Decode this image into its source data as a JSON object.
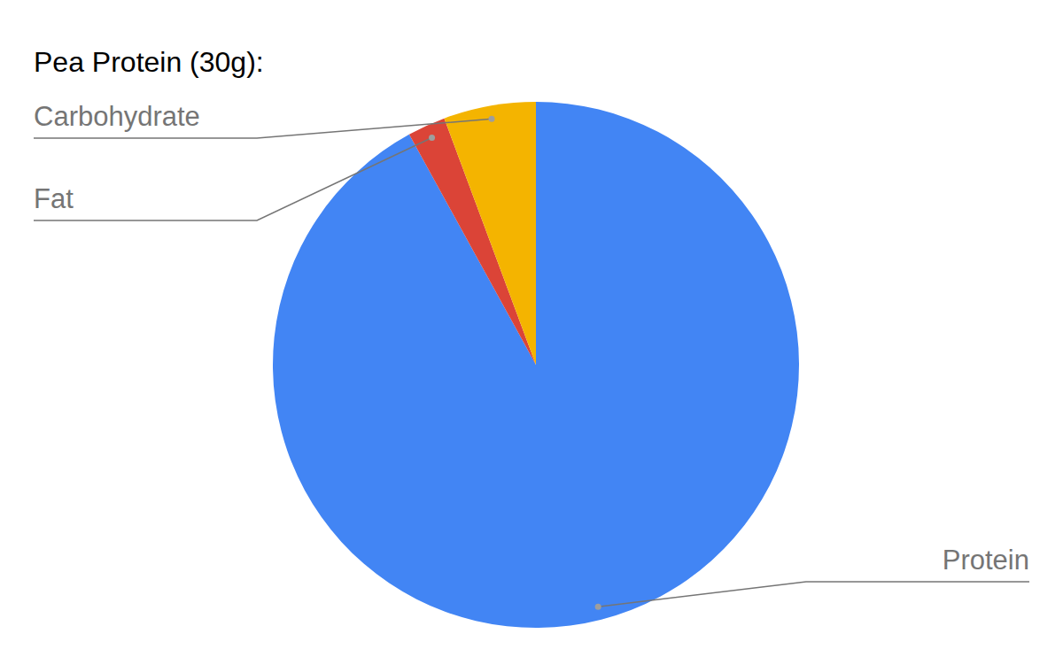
{
  "chart_data": {
    "type": "pie",
    "title": "Pea Protein (30g):",
    "categories": [
      "Protein",
      "Fat",
      "Carbohydrate"
    ],
    "values": [
      27.6,
      0.7,
      1.7
    ],
    "colors": [
      "#4285f4",
      "#db4437",
      "#f4b400"
    ]
  }
}
